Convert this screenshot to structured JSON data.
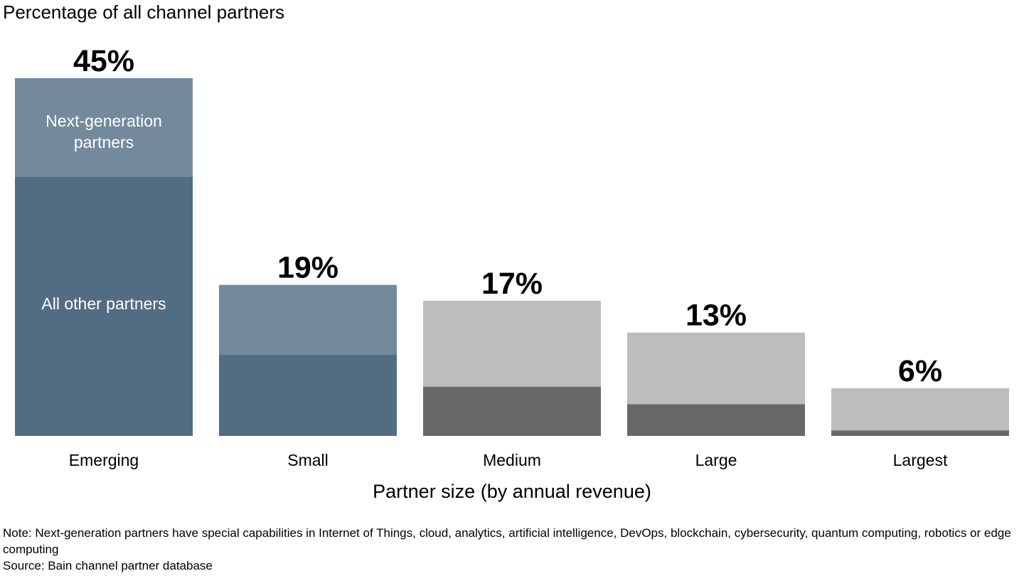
{
  "chart_data": {
    "type": "bar",
    "stacked": true,
    "ylabel": "Percentage of all channel partners",
    "xlabel": "Partner size (by annual revenue)",
    "categories": [
      "Emerging",
      "Small",
      "Medium",
      "Large",
      "Largest"
    ],
    "totals": [
      45,
      19,
      17,
      13,
      6
    ],
    "total_labels": [
      "45%",
      "19%",
      "17%",
      "13%",
      "6%"
    ],
    "series": [
      {
        "name": "All other partners",
        "values": [
          32.6,
          10.2,
          6.2,
          4.0,
          0.7
        ]
      },
      {
        "name": "Next-generation partners",
        "values": [
          12.4,
          8.8,
          10.8,
          9.0,
          5.3
        ]
      }
    ],
    "in_bar_labels": {
      "all_other": "All other partners",
      "next_gen": "Next-generation partners"
    },
    "colors": {
      "next_gen_highlight": "#738a9d",
      "all_other_highlight": "#526c84",
      "next_gen_muted": "#bcbdbf",
      "all_other_muted": "#686868"
    },
    "highlighted_categories": [
      "Emerging",
      "Small"
    ],
    "ylim": [
      0,
      45
    ],
    "grid": false
  },
  "notes": {
    "note": "Note: Next-generation partners have special capabilities in Internet of Things, cloud, analytics, artificial intelligence, DevOps, blockchain, cybersecurity, quantum computing, robotics or edge computing",
    "source": "Source: Bain channel partner database"
  }
}
